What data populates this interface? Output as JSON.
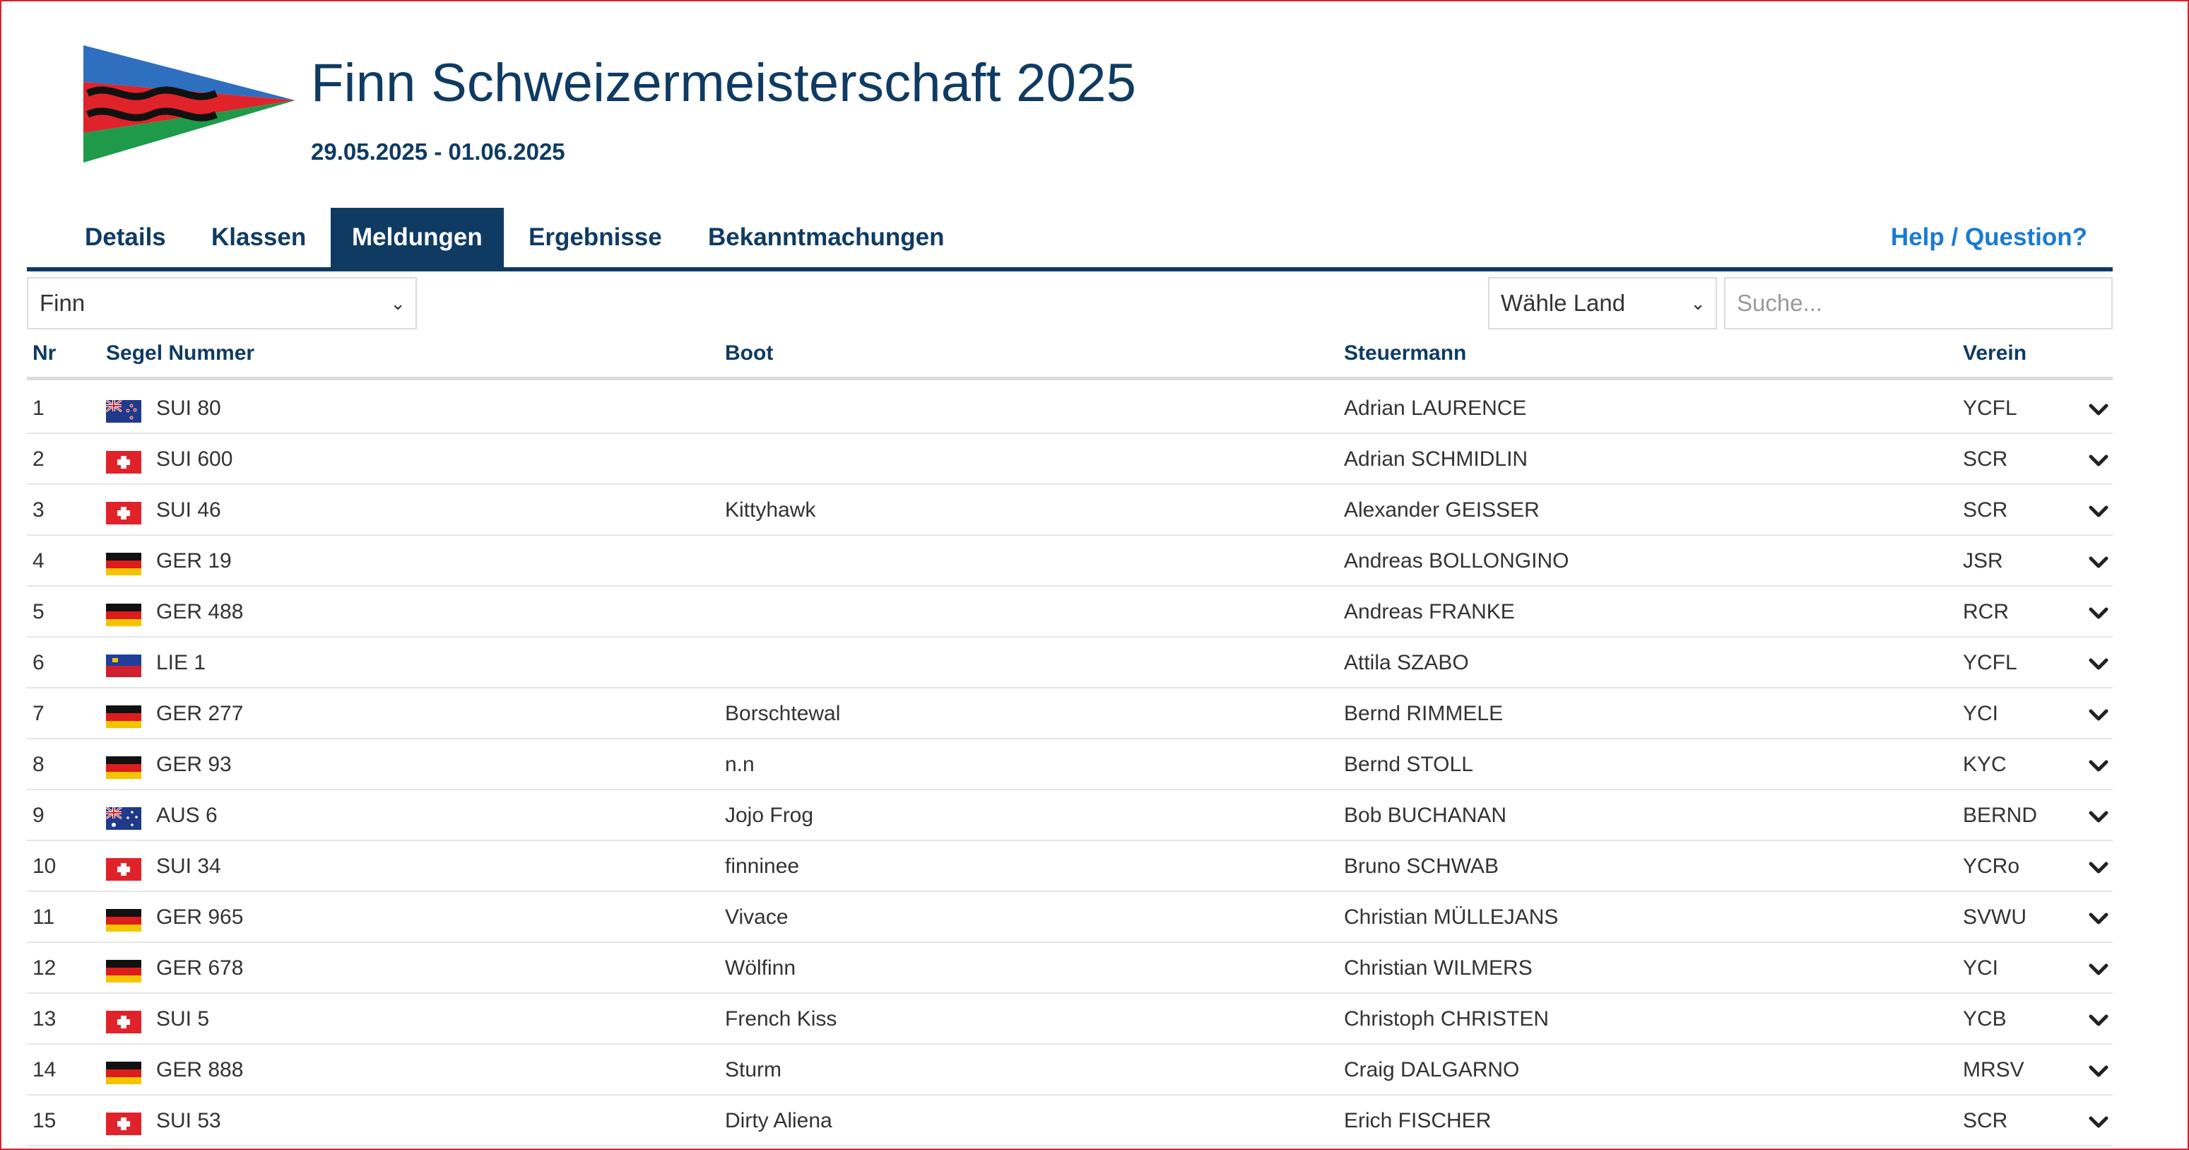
{
  "colors": {
    "navy": "#0f3b63",
    "link": "#1a7bd0",
    "frame": "#d9232a"
  },
  "header": {
    "title": "Finn Schweizermeisterschaft 2025",
    "dates": "29.05.2025 - 01.06.2025"
  },
  "nav": {
    "tabs": [
      {
        "label": "Details"
      },
      {
        "label": "Klassen"
      },
      {
        "label": "Meldungen",
        "active": true
      },
      {
        "label": "Ergebnisse"
      },
      {
        "label": "Bekanntmachungen"
      }
    ],
    "help": "Help / Question?"
  },
  "filters": {
    "class_value": "Finn",
    "country_value": "Wähle Land",
    "search_placeholder": "Suche..."
  },
  "table": {
    "headers": {
      "nr": "Nr",
      "sail": "Segel Nummer",
      "boat": "Boot",
      "helm": "Steuermann",
      "club": "Verein"
    },
    "rows": [
      {
        "nr": "1",
        "flag": "nz-flag-icon",
        "sail": "SUI 80",
        "boat": "",
        "helm": "Adrian LAURENCE",
        "club": "YCFL"
      },
      {
        "nr": "2",
        "flag": "ch-flag-icon",
        "sail": "SUI 600",
        "boat": "",
        "helm": "Adrian SCHMIDLIN",
        "club": "SCR"
      },
      {
        "nr": "3",
        "flag": "ch-flag-icon",
        "sail": "SUI 46",
        "boat": "Kittyhawk",
        "helm": "Alexander GEISSER",
        "club": "SCR"
      },
      {
        "nr": "4",
        "flag": "de-flag-icon",
        "sail": "GER 19",
        "boat": "",
        "helm": "Andreas BOLLONGINO",
        "club": "JSR"
      },
      {
        "nr": "5",
        "flag": "de-flag-icon",
        "sail": "GER 488",
        "boat": "",
        "helm": "Andreas FRANKE",
        "club": "RCR"
      },
      {
        "nr": "6",
        "flag": "li-flag-icon",
        "sail": "LIE 1",
        "boat": "",
        "helm": "Attila SZABO",
        "club": "YCFL"
      },
      {
        "nr": "7",
        "flag": "de-flag-icon",
        "sail": "GER 277",
        "boat": "Borschtewal",
        "helm": "Bernd RIMMELE",
        "club": "YCI"
      },
      {
        "nr": "8",
        "flag": "de-flag-icon",
        "sail": "GER 93",
        "boat": "n.n",
        "helm": "Bernd STOLL",
        "club": "KYC"
      },
      {
        "nr": "9",
        "flag": "au-flag-icon",
        "sail": "AUS 6",
        "boat": "Jojo Frog",
        "helm": "Bob BUCHANAN",
        "club": "BERND"
      },
      {
        "nr": "10",
        "flag": "ch-flag-icon",
        "sail": "SUI 34",
        "boat": "finninee",
        "helm": "Bruno SCHWAB",
        "club": "YCRo"
      },
      {
        "nr": "11",
        "flag": "de-flag-icon",
        "sail": "GER 965",
        "boat": "Vivace",
        "helm": "Christian MÜLLEJANS",
        "club": "SVWU"
      },
      {
        "nr": "12",
        "flag": "de-flag-icon",
        "sail": "GER 678",
        "boat": "Wölfinn",
        "helm": "Christian WILMERS",
        "club": "YCI"
      },
      {
        "nr": "13",
        "flag": "ch-flag-icon",
        "sail": "SUI 5",
        "boat": "French Kiss",
        "helm": "Christoph CHRISTEN",
        "club": "YCB"
      },
      {
        "nr": "14",
        "flag": "de-flag-icon",
        "sail": "GER 888",
        "boat": "Sturm",
        "helm": "Craig DALGARNO",
        "club": "MRSV"
      },
      {
        "nr": "15",
        "flag": "ch-flag-icon",
        "sail": "SUI 53",
        "boat": "Dirty Aliena",
        "helm": "Erich FISCHER",
        "club": "SCR"
      }
    ]
  }
}
